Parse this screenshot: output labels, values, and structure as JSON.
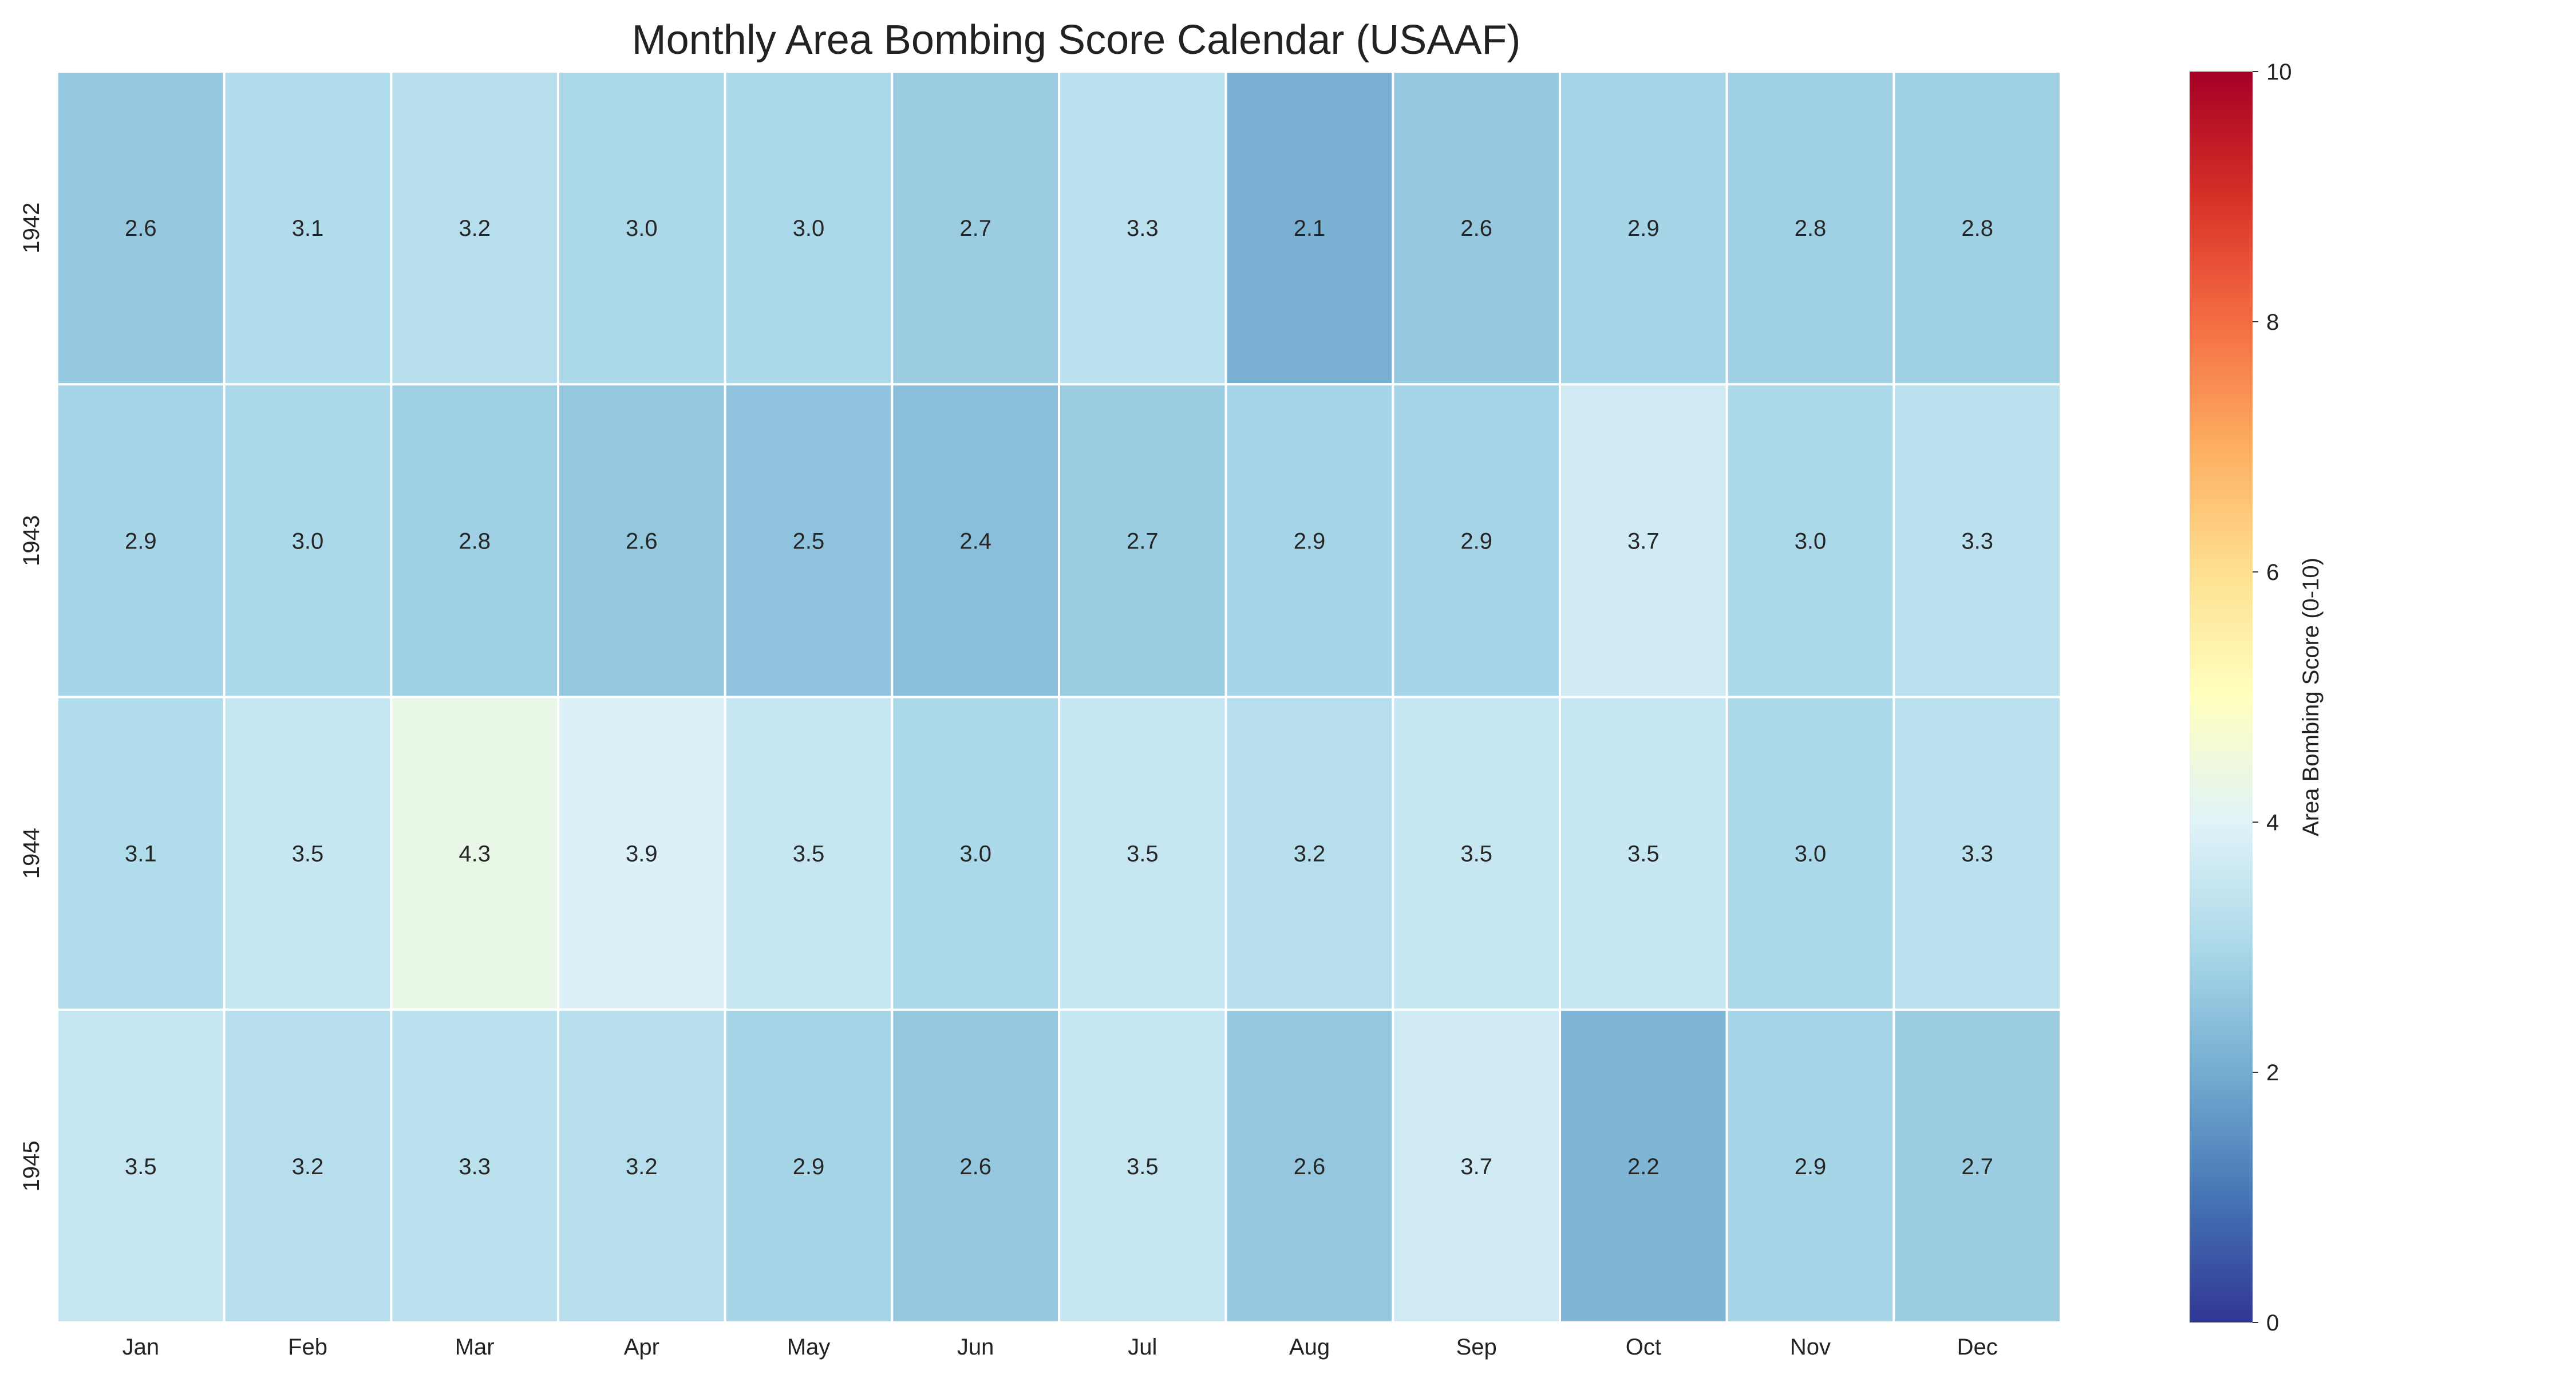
{
  "chart_data": {
    "type": "heatmap",
    "title": "Monthly Area Bombing Score Calendar (USAAF)",
    "xlabel": "",
    "ylabel": "",
    "x_categories": [
      "Jan",
      "Feb",
      "Mar",
      "Apr",
      "May",
      "Jun",
      "Jul",
      "Aug",
      "Sep",
      "Oct",
      "Nov",
      "Dec"
    ],
    "y_categories": [
      "1942",
      "1943",
      "1944",
      "1945"
    ],
    "values": [
      [
        2.6,
        3.1,
        3.2,
        3.0,
        3.0,
        2.7,
        3.3,
        2.1,
        2.6,
        2.9,
        2.8,
        2.8
      ],
      [
        2.9,
        3.0,
        2.8,
        2.6,
        2.5,
        2.4,
        2.7,
        2.9,
        2.9,
        3.7,
        3.0,
        3.3
      ],
      [
        3.1,
        3.5,
        4.3,
        3.9,
        3.5,
        3.0,
        3.5,
        3.2,
        3.5,
        3.5,
        3.0,
        3.3
      ],
      [
        3.5,
        3.2,
        3.3,
        3.2,
        2.9,
        2.6,
        3.5,
        2.6,
        3.7,
        2.2,
        2.9,
        2.7
      ]
    ],
    "value_format": "0.0",
    "colorscale": "RdYlBu_r",
    "zlim": [
      0,
      10
    ],
    "colorbar": {
      "label": "Area Bombing Score (0-10)",
      "ticks": [
        0,
        2,
        4,
        6,
        8,
        10
      ]
    },
    "grid": false
  }
}
